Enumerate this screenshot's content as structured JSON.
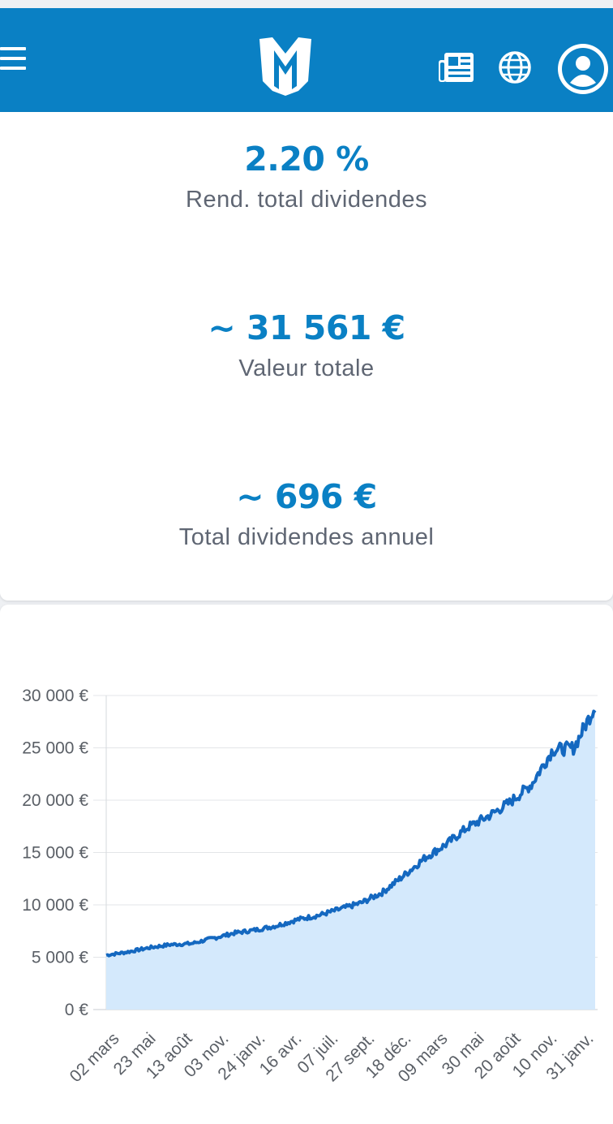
{
  "header": {
    "menu_icon": "hamburger-menu-icon",
    "logo_icon": "m-logo",
    "news_icon": "newspaper-icon",
    "language_icon": "globe-icon",
    "account_icon": "user-avatar-icon",
    "color": "#0a80c4"
  },
  "stats": [
    {
      "value": "2.20 %",
      "label": "Rend. total dividendes"
    },
    {
      "value": "~ 31 561 €",
      "label": "Valeur totale"
    },
    {
      "value": "~ 696 €",
      "label": "Total dividendes annuel"
    }
  ],
  "chart_data": {
    "type": "area",
    "title": "",
    "xlabel": "",
    "ylabel": "",
    "ylim": [
      0,
      30000
    ],
    "yticks": [
      "0 €",
      "5 000 €",
      "10 000 €",
      "15 000 €",
      "20 000 €",
      "25 000 €",
      "30 000 €"
    ],
    "ytick_values": [
      0,
      5000,
      10000,
      15000,
      20000,
      25000,
      30000
    ],
    "xticks": [
      "02 mars",
      "23 mai",
      "13 août",
      "03 nov.",
      "24 janv.",
      "16 avr.",
      "07 juil.",
      "27 sept.",
      "18 déc.",
      "09 mars",
      "30 mai",
      "20 août",
      "10 nov.",
      "31 janv."
    ],
    "grid": true,
    "line_color": "#1468c0",
    "fill_color": "#d4e9fc",
    "series": [
      {
        "values": [
          5200,
          5500,
          5900,
          6200,
          6300,
          6800,
          7300,
          7600,
          8000,
          8600,
          9000,
          9600,
          10200,
          11200,
          12800,
          14500,
          15800,
          17400,
          18500,
          19800,
          21500,
          24800,
          25000,
          29000
        ]
      }
    ]
  }
}
